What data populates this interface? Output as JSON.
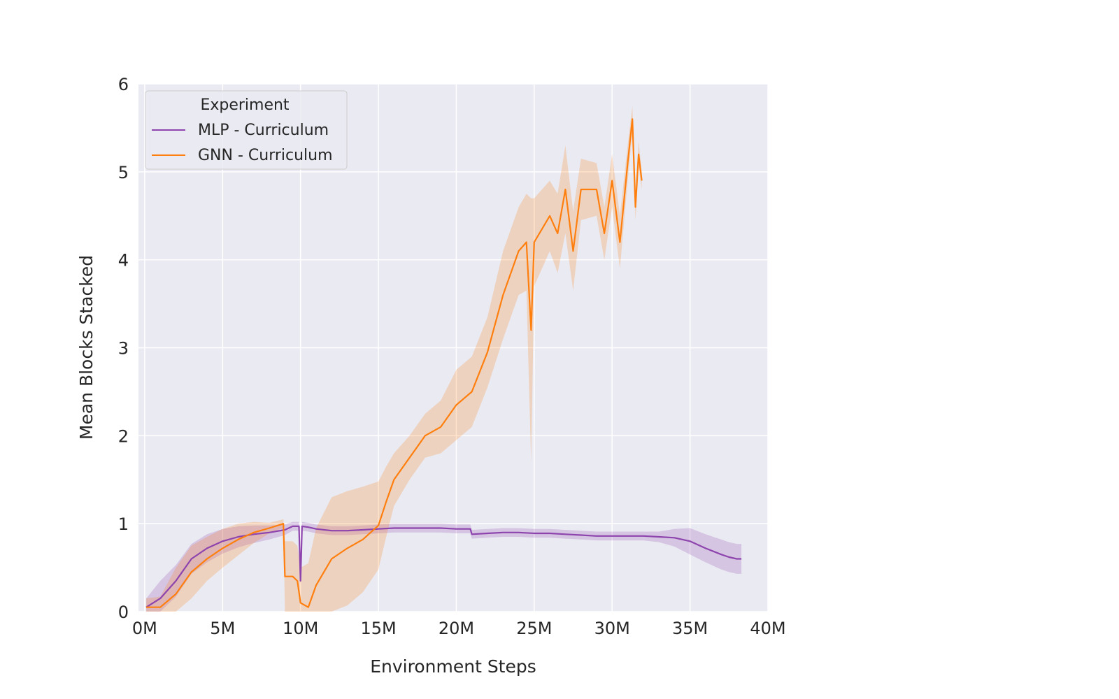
{
  "chart_data": {
    "type": "line",
    "title": "",
    "xlabel": "Environment Steps",
    "ylabel": "Mean Blocks Stacked",
    "xlim": [
      -0.0004,
      0.04
    ],
    "ylim": [
      0,
      6
    ],
    "x_ticks": [
      0,
      0.005,
      0.01,
      0.015,
      0.02,
      0.025,
      0.03,
      0.035,
      0.04
    ],
    "x_tick_labels": [
      "0M",
      "5M",
      "10M",
      "15M",
      "20M",
      "25M",
      "30M",
      "35M",
      "40M"
    ],
    "y_ticks": [
      0,
      1,
      2,
      3,
      4,
      5,
      6
    ],
    "y_tick_labels": [
      "0",
      "1",
      "2",
      "3",
      "4",
      "5",
      "6"
    ],
    "grid": true,
    "background": "#EAEAF2",
    "legend": {
      "title": "Experiment",
      "placement": "top-left"
    },
    "series": [
      {
        "name": "MLP - Curriculum",
        "color": "#8E44AD",
        "x": [
          0.0001,
          0.001,
          0.002,
          0.003,
          0.004,
          0.005,
          0.006,
          0.007,
          0.008,
          0.009,
          0.0095,
          0.0099,
          0.01,
          0.0101,
          0.0105,
          0.011,
          0.012,
          0.013,
          0.014,
          0.015,
          0.016,
          0.017,
          0.018,
          0.019,
          0.02,
          0.0209,
          0.021,
          0.022,
          0.023,
          0.024,
          0.025,
          0.026,
          0.027,
          0.028,
          0.029,
          0.03,
          0.031,
          0.032,
          0.033,
          0.034,
          0.035,
          0.036,
          0.037,
          0.0375,
          0.038,
          0.0383
        ],
        "y": [
          0.05,
          0.15,
          0.35,
          0.6,
          0.72,
          0.8,
          0.85,
          0.88,
          0.9,
          0.93,
          0.97,
          0.97,
          0.35,
          0.97,
          0.96,
          0.94,
          0.92,
          0.92,
          0.93,
          0.94,
          0.95,
          0.95,
          0.95,
          0.95,
          0.94,
          0.94,
          0.88,
          0.89,
          0.9,
          0.9,
          0.89,
          0.89,
          0.88,
          0.87,
          0.86,
          0.86,
          0.86,
          0.86,
          0.85,
          0.84,
          0.8,
          0.72,
          0.65,
          0.62,
          0.6,
          0.6
        ],
        "band_width": [
          0.1,
          0.2,
          0.18,
          0.17,
          0.16,
          0.14,
          0.12,
          0.1,
          0.08,
          0.06,
          0.05,
          0.05,
          0.05,
          0.05,
          0.05,
          0.05,
          0.05,
          0.05,
          0.05,
          0.05,
          0.05,
          0.05,
          0.05,
          0.05,
          0.05,
          0.05,
          0.05,
          0.05,
          0.05,
          0.05,
          0.05,
          0.05,
          0.05,
          0.05,
          0.05,
          0.05,
          0.05,
          0.05,
          0.06,
          0.1,
          0.15,
          0.16,
          0.17,
          0.17,
          0.17,
          0.17
        ]
      },
      {
        "name": "GNN - Curriculum",
        "color": "#FF7F0E",
        "x": [
          0.0001,
          0.001,
          0.002,
          0.003,
          0.004,
          0.005,
          0.006,
          0.007,
          0.008,
          0.0089,
          0.009,
          0.0095,
          0.0098,
          0.01,
          0.0105,
          0.011,
          0.012,
          0.013,
          0.014,
          0.015,
          0.0155,
          0.016,
          0.017,
          0.018,
          0.019,
          0.02,
          0.021,
          0.022,
          0.023,
          0.024,
          0.0245,
          0.0248,
          0.025,
          0.026,
          0.0265,
          0.027,
          0.0275,
          0.028,
          0.029,
          0.0295,
          0.03,
          0.0305,
          0.031,
          0.0313,
          0.0315,
          0.0317,
          0.0319
        ],
        "y": [
          0.05,
          0.05,
          0.2,
          0.45,
          0.6,
          0.72,
          0.82,
          0.9,
          0.95,
          1.0,
          0.4,
          0.4,
          0.35,
          0.1,
          0.05,
          0.3,
          0.6,
          0.72,
          0.82,
          0.98,
          1.25,
          1.5,
          1.75,
          2.0,
          2.1,
          2.35,
          2.5,
          2.95,
          3.6,
          4.1,
          4.2,
          3.2,
          4.2,
          4.5,
          4.3,
          4.8,
          4.1,
          4.8,
          4.8,
          4.3,
          4.9,
          4.2,
          5.1,
          5.6,
          4.6,
          5.2,
          4.9
        ],
        "band_width": [
          0.1,
          0.12,
          0.3,
          0.3,
          0.25,
          0.22,
          0.18,
          0.12,
          0.06,
          0.05,
          0.4,
          0.4,
          0.4,
          0.4,
          0.5,
          0.65,
          0.7,
          0.65,
          0.6,
          0.5,
          0.4,
          0.3,
          0.25,
          0.25,
          0.3,
          0.4,
          0.4,
          0.4,
          0.5,
          0.5,
          0.55,
          1.5,
          0.5,
          0.4,
          0.45,
          0.5,
          0.45,
          0.35,
          0.3,
          0.3,
          0.3,
          0.3,
          0.2,
          0.15,
          0.15,
          0.15,
          0.1
        ]
      }
    ]
  }
}
